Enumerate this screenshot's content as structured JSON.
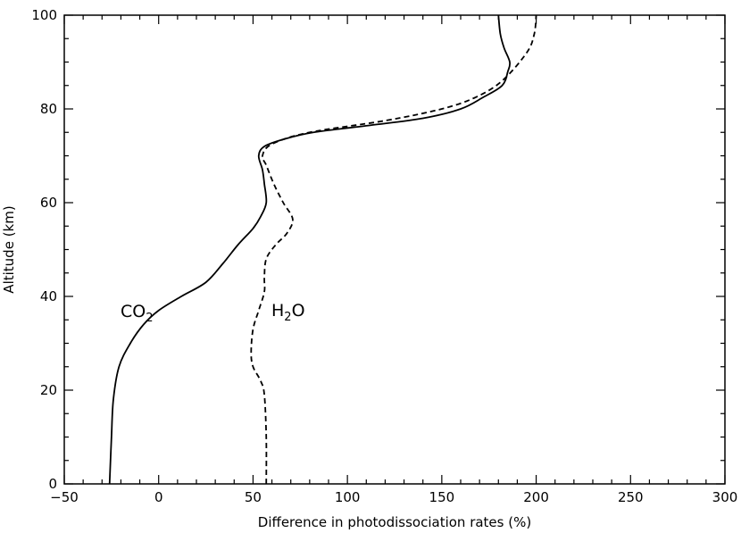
{
  "chart_data": {
    "type": "line",
    "title": "",
    "xlabel": "Difference in photodissociation rates (%)",
    "ylabel": "Altitude (km)",
    "xlim": [
      -50,
      300
    ],
    "ylim": [
      0,
      100
    ],
    "x_ticks": [
      -50,
      0,
      50,
      100,
      150,
      200,
      250,
      300
    ],
    "x_tick_labels": [
      "−50",
      "0",
      "50",
      "100",
      "150",
      "200",
      "250",
      "300"
    ],
    "y_ticks": [
      0,
      20,
      40,
      60,
      80,
      100
    ],
    "y_tick_labels": [
      "0",
      "20",
      "40",
      "60",
      "80",
      "100"
    ],
    "grid": false,
    "legend": "none",
    "series": [
      {
        "name": "CO2",
        "label_main": "CO",
        "label_sub": "2",
        "style": "solid",
        "color": "#000000",
        "points": [
          [
            -26,
            0
          ],
          [
            -25,
            10
          ],
          [
            -24,
            18
          ],
          [
            -21,
            25
          ],
          [
            -15,
            30
          ],
          [
            -8,
            34
          ],
          [
            0,
            37
          ],
          [
            12,
            40
          ],
          [
            25,
            43
          ],
          [
            34,
            47
          ],
          [
            42,
            51
          ],
          [
            50,
            54.5
          ],
          [
            54,
            57
          ],
          [
            57,
            60
          ],
          [
            56,
            64
          ],
          [
            55,
            67
          ],
          [
            53,
            70
          ],
          [
            56,
            72
          ],
          [
            66,
            73.5
          ],
          [
            82,
            75
          ],
          [
            112,
            76.5
          ],
          [
            140,
            78
          ],
          [
            160,
            80
          ],
          [
            172,
            82.5
          ],
          [
            182,
            85
          ],
          [
            185,
            88
          ],
          [
            186,
            90
          ],
          [
            183,
            93
          ],
          [
            181,
            96
          ],
          [
            180,
            100
          ]
        ]
      },
      {
        "name": "H2O",
        "label_main": "H",
        "label_sub": "2",
        "label_tail": "O",
        "style": "dashed",
        "color": "#000000",
        "points": [
          [
            57,
            0
          ],
          [
            57,
            10
          ],
          [
            56,
            19
          ],
          [
            54,
            22
          ],
          [
            50,
            25
          ],
          [
            49,
            28
          ],
          [
            50,
            33
          ],
          [
            53,
            37
          ],
          [
            56,
            41
          ],
          [
            56,
            44
          ],
          [
            57,
            48
          ],
          [
            62,
            51
          ],
          [
            68,
            53.5
          ],
          [
            71,
            56.5
          ],
          [
            66,
            60
          ],
          [
            61,
            64
          ],
          [
            57,
            68
          ],
          [
            55,
            70
          ],
          [
            60,
            72.5
          ],
          [
            80,
            75
          ],
          [
            120,
            77.5
          ],
          [
            150,
            80
          ],
          [
            168,
            82.5
          ],
          [
            182,
            86
          ],
          [
            195,
            92
          ],
          [
            199,
            96
          ],
          [
            200,
            100
          ]
        ]
      }
    ]
  }
}
